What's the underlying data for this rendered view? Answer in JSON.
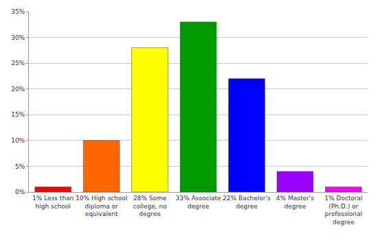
{
  "chart_data": {
    "type": "bar",
    "categories": [
      "1% Less than high school",
      "10% High school diploma or equivalent",
      "28% Some college, no degree",
      "33% Associate degree",
      "22% Bachelor's degree",
      "4% Master's degree",
      "1% Doctoral (Ph.D.) or professional degree"
    ],
    "values": [
      1,
      10,
      28,
      33,
      22,
      4,
      1
    ],
    "colors": [
      "#ff0000",
      "#ff6600",
      "#ffff00",
      "#009900",
      "#0000ff",
      "#9900ff",
      "#ff00ff"
    ],
    "ylim": [
      0,
      35
    ],
    "yticks": [
      {
        "value": 0,
        "label": "0%"
      },
      {
        "value": 5,
        "label": "5%"
      },
      {
        "value": 10,
        "label": "10%"
      },
      {
        "value": 15,
        "label": "15%"
      },
      {
        "value": 20,
        "label": "20%"
      },
      {
        "value": 25,
        "label": "25%"
      },
      {
        "value": 30,
        "label": "30%"
      },
      {
        "value": 35,
        "label": "35%"
      }
    ],
    "grid": true
  }
}
